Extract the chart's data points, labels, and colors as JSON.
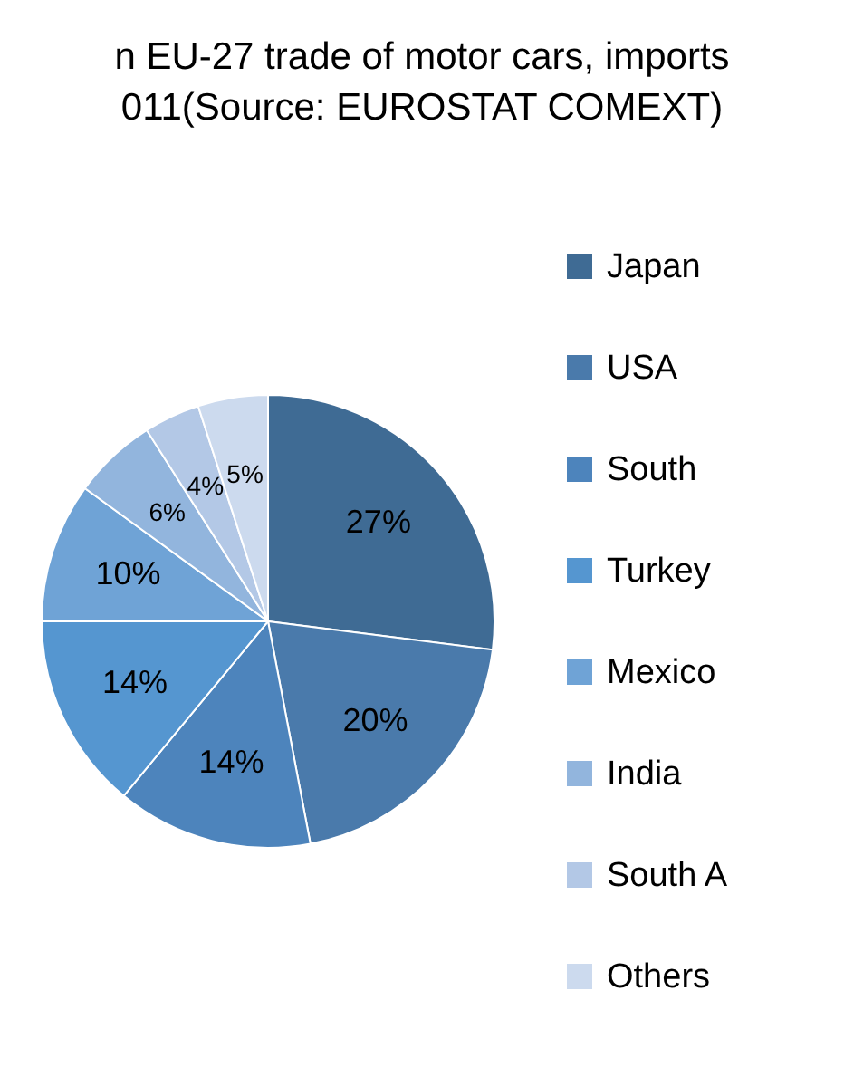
{
  "chart_data": {
    "type": "pie",
    "title": "n EU-27 trade of motor cars, imports\n011(Source: EUROSTAT COMEXT)",
    "categories": [
      "Japan",
      "USA",
      "South",
      "Turkey",
      "Mexico",
      "India",
      "South A",
      "Others"
    ],
    "values": [
      27,
      20,
      14,
      14,
      10,
      6,
      4,
      5
    ],
    "colors": [
      "#3f6b94",
      "#4a7aab",
      "#4d84bc",
      "#5596d0",
      "#6fa3d6",
      "#92b5dd",
      "#b3c8e6",
      "#ccdaee"
    ],
    "value_labels": [
      "27%",
      "20%",
      "14%",
      "14%",
      "10%",
      "6%",
      "4%",
      "5%"
    ],
    "legend": "right"
  }
}
